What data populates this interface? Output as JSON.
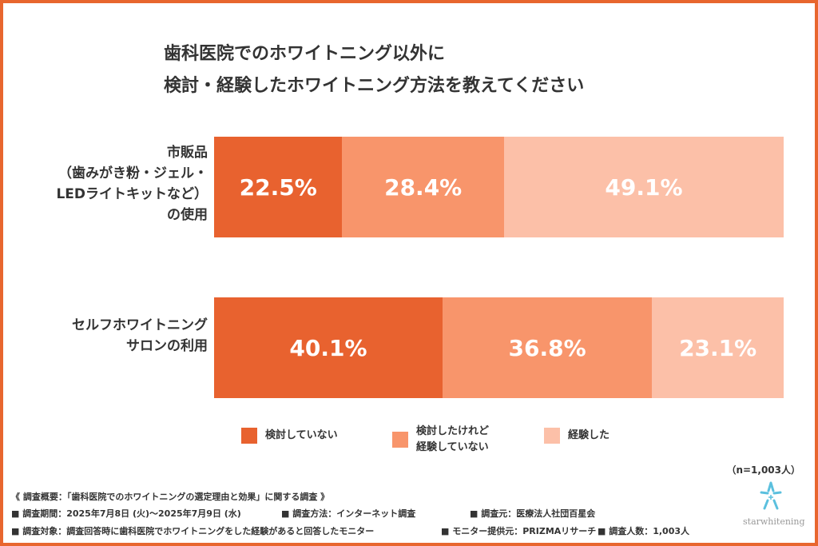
{
  "chart_data": {
    "type": "bar",
    "stacked": true,
    "orientation": "horizontal",
    "title": [
      "歯科医院でのホワイトニング以外に",
      "検討・経験したホワイトニング方法を教えてください"
    ],
    "categories": [
      [
        "市販品",
        "（歯みがき粉・ジェル・",
        "LEDライトキットなど）",
        "の使用"
      ],
      [
        "セルフホワイトニング",
        "サロンの利用"
      ]
    ],
    "series": [
      {
        "name": "検討していない",
        "color": "#E8622F",
        "values": [
          22.5,
          40.1
        ],
        "labels": [
          "22.5%",
          "40.1%"
        ]
      },
      {
        "name_lines": [
          "検討したけれど",
          "経験していない"
        ],
        "name": "検討したけれど経験していない",
        "color": "#F8956B",
        "values": [
          28.4,
          36.8
        ],
        "labels": [
          "28.4%",
          "36.8%"
        ]
      },
      {
        "name": "経験した",
        "color": "#FCC0A8",
        "values": [
          49.1,
          23.1
        ],
        "labels": [
          "49.1%",
          "23.1%"
        ]
      }
    ],
    "xlim": [
      0,
      100
    ],
    "grid": false,
    "legend_position": "bottom"
  },
  "sample_note": "（n=1,003人）",
  "footer": [
    "《 調査概要：「歯科医院でのホワイトニングの選定理由と効果」に関する調査 》",
    "■ 調査期間：2025年7月8日 (火)～2025年7月9日 (水)",
    "■ 調査方法：インターネット調査",
    "■ 調査元：医療法人社団百星会",
    "■ 調査対象：調査回答時に歯科医院でホワイトニングをした経験があると回答したモニター",
    "■ モニター提供元：PRIZMAリサーチ",
    "■ 調査人数：1,003人"
  ],
  "logo": {
    "text": "starwhitening",
    "color": "#5BC0DE"
  },
  "frame_color": "#E8662E"
}
